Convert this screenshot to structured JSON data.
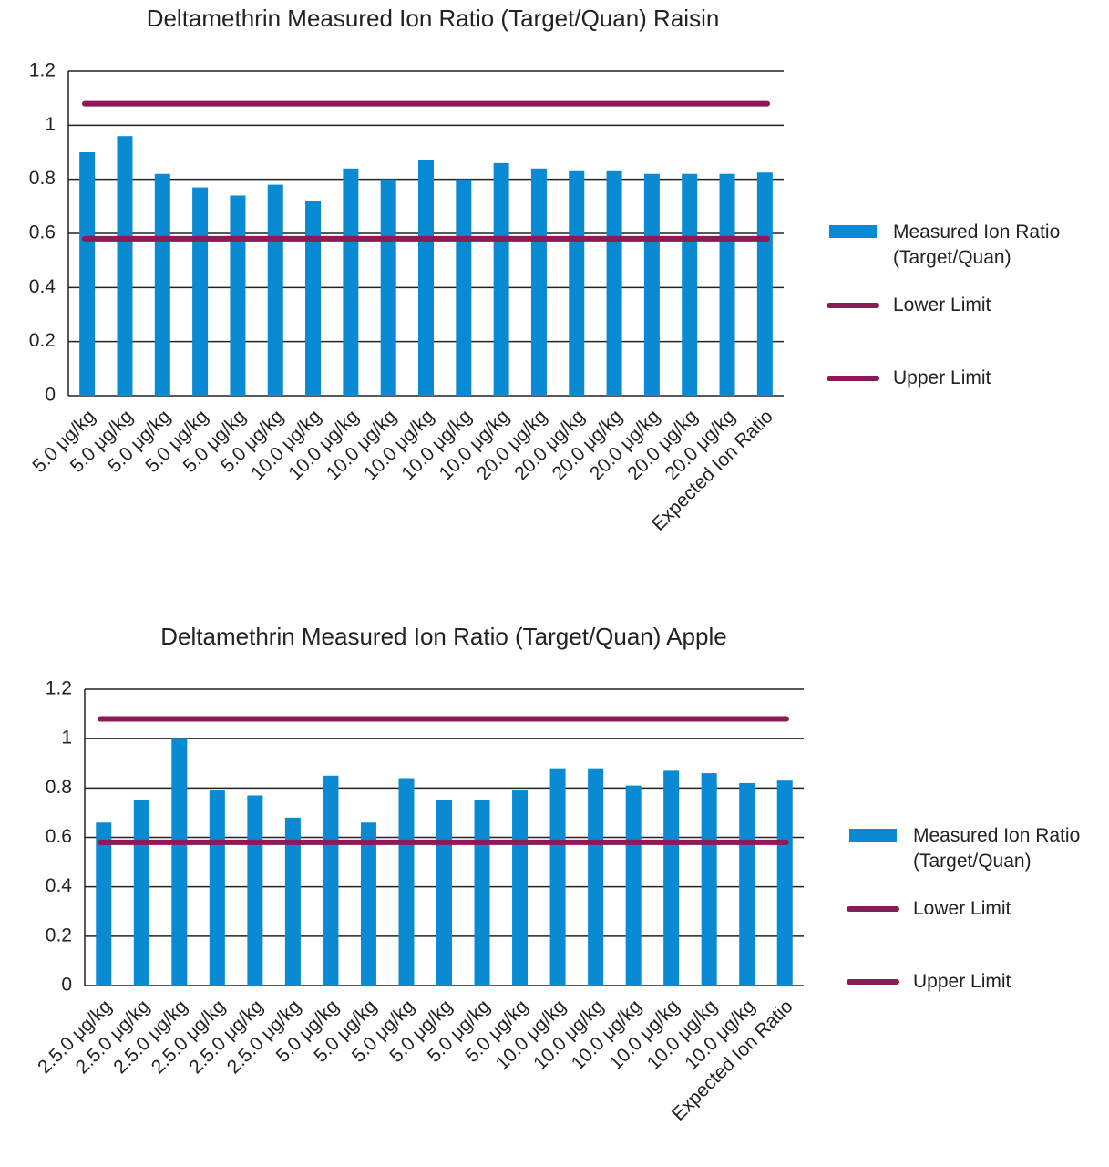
{
  "chart_data": [
    {
      "type": "bar",
      "title": "Deltamethrin Measured Ion Ratio (Target/Quan) Raisin",
      "categories": [
        "5.0  μg/kg",
        "5.0  μg/kg",
        "5.0  μg/kg",
        "5.0  μg/kg",
        "5.0  μg/kg",
        "5.0  μg/kg",
        "10.0  μg/kg",
        "10.0  μg/kg",
        "10.0  μg/kg",
        "10.0  μg/kg",
        "10.0  μg/kg",
        "10.0  μg/kg",
        "20.0  μg/kg",
        "20.0  μg/kg",
        "20.0  μg/kg",
        "20.0  μg/kg",
        "20.0  μg/kg",
        "20.0  μg/kg",
        "Expected Ion Ratio"
      ],
      "series": [
        {
          "name": "Measured Ion Ratio (Target/Quan)",
          "color": "#0a8ad2",
          "values": [
            0.9,
            0.96,
            0.82,
            0.77,
            0.74,
            0.78,
            0.72,
            0.84,
            0.8,
            0.87,
            0.8,
            0.86,
            0.84,
            0.83,
            0.83,
            0.82,
            0.82,
            0.82,
            0.825
          ]
        }
      ],
      "lines": [
        {
          "name": "Lower Limit",
          "color": "#8b1a55",
          "value": 0.58
        },
        {
          "name": "Upper Limit",
          "color": "#8b1a55",
          "value": 1.08
        }
      ],
      "ylim": [
        0,
        1.2
      ],
      "yticks": [
        0,
        0.2,
        0.4,
        0.6,
        0.8,
        1,
        1.2
      ],
      "grid": true,
      "legend": "right"
    },
    {
      "type": "bar",
      "title": "Deltamethrin Measured Ion Ratio (Target/Quan) Apple",
      "categories": [
        "2.5.0  μg/kg",
        "2.5.0  μg/kg",
        "2.5.0  μg/kg",
        "2.5.0  μg/kg",
        "2.5.0  μg/kg",
        "2.5.0  μg/kg",
        "5.0  μg/kg",
        "5.0  μg/kg",
        "5.0  μg/kg",
        "5.0  μg/kg",
        "5.0  μg/kg",
        "5.0  μg/kg",
        "10.0  μg/kg",
        "10.0  μg/kg",
        "10.0  μg/kg",
        "10.0  μg/kg",
        "10.0  μg/kg",
        "10.0  μg/kg",
        "Expected Ion Ratio"
      ],
      "series": [
        {
          "name": "Measured Ion Ratio (Target/Quan)",
          "color": "#0a8ad2",
          "values": [
            0.66,
            0.75,
            1.0,
            0.79,
            0.77,
            0.68,
            0.85,
            0.66,
            0.84,
            0.75,
            0.75,
            0.79,
            0.88,
            0.88,
            0.81,
            0.87,
            0.86,
            0.82,
            0.83
          ]
        }
      ],
      "lines": [
        {
          "name": "Lower Limit",
          "color": "#8b1a55",
          "value": 0.58
        },
        {
          "name": "Upper Limit",
          "color": "#8b1a55",
          "value": 1.08
        }
      ],
      "ylim": [
        0,
        1.2
      ],
      "yticks": [
        0,
        0.2,
        0.4,
        0.6,
        0.8,
        1,
        1.2
      ],
      "grid": true,
      "legend": "right"
    }
  ]
}
